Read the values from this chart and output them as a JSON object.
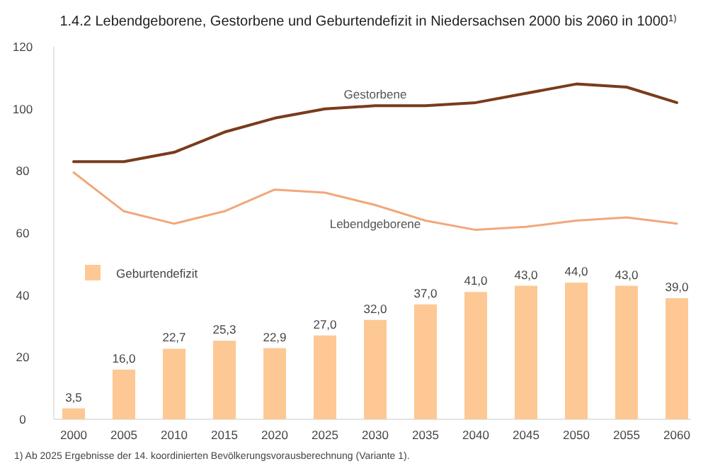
{
  "chart_data": {
    "type": "bar",
    "title": "1.4.2 Lebendgeborene, Gestorbene und Geburtendefizit in Niedersachsen 2000 bis 2060 in 1000$^{1)}$",
    "categories": [
      "2000",
      "2005",
      "2010",
      "2015",
      "2020",
      "2025",
      "2030",
      "2035",
      "2040",
      "2045",
      "2050",
      "2055",
      "2060"
    ],
    "series": [
      {
        "name": "Geburtendefizit",
        "color": "#fdc894",
        "values": [
          3.5,
          16.0,
          22.7,
          25.3,
          22.9,
          27.0,
          32.0,
          37.0,
          41.0,
          43.0,
          44.0,
          43.0,
          39.0
        ],
        "value_labels": [
          "3,5",
          "16,0",
          "22,7",
          "25,3",
          "22,9",
          "27,0",
          "32,0",
          "37,0",
          "41,0",
          "43,0",
          "44,0",
          "43,0",
          "39,0"
        ]
      },
      {
        "name": "Gestorbene",
        "type": "line",
        "color": "#7a3b1c",
        "values": [
          83,
          83,
          86,
          92.5,
          97,
          100,
          101,
          101,
          102,
          105,
          108,
          107,
          102
        ]
      },
      {
        "name": "Lebendgeborene",
        "type": "line",
        "color": "#f2a77a",
        "values": [
          79.5,
          67,
          63,
          67,
          74,
          73,
          69,
          64,
          61,
          62,
          64,
          65,
          63
        ]
      }
    ],
    "ylim": [
      0,
      120
    ],
    "yticks": [
      0,
      20,
      40,
      60,
      80,
      100,
      120
    ],
    "grid": false,
    "legend": "left",
    "marker": "none",
    "annotations": [
      "1) Ab 2025 Ergebnisse der 14. koordinierten Bevölkerungsvorausberechnung (Variante 1)."
    ]
  }
}
